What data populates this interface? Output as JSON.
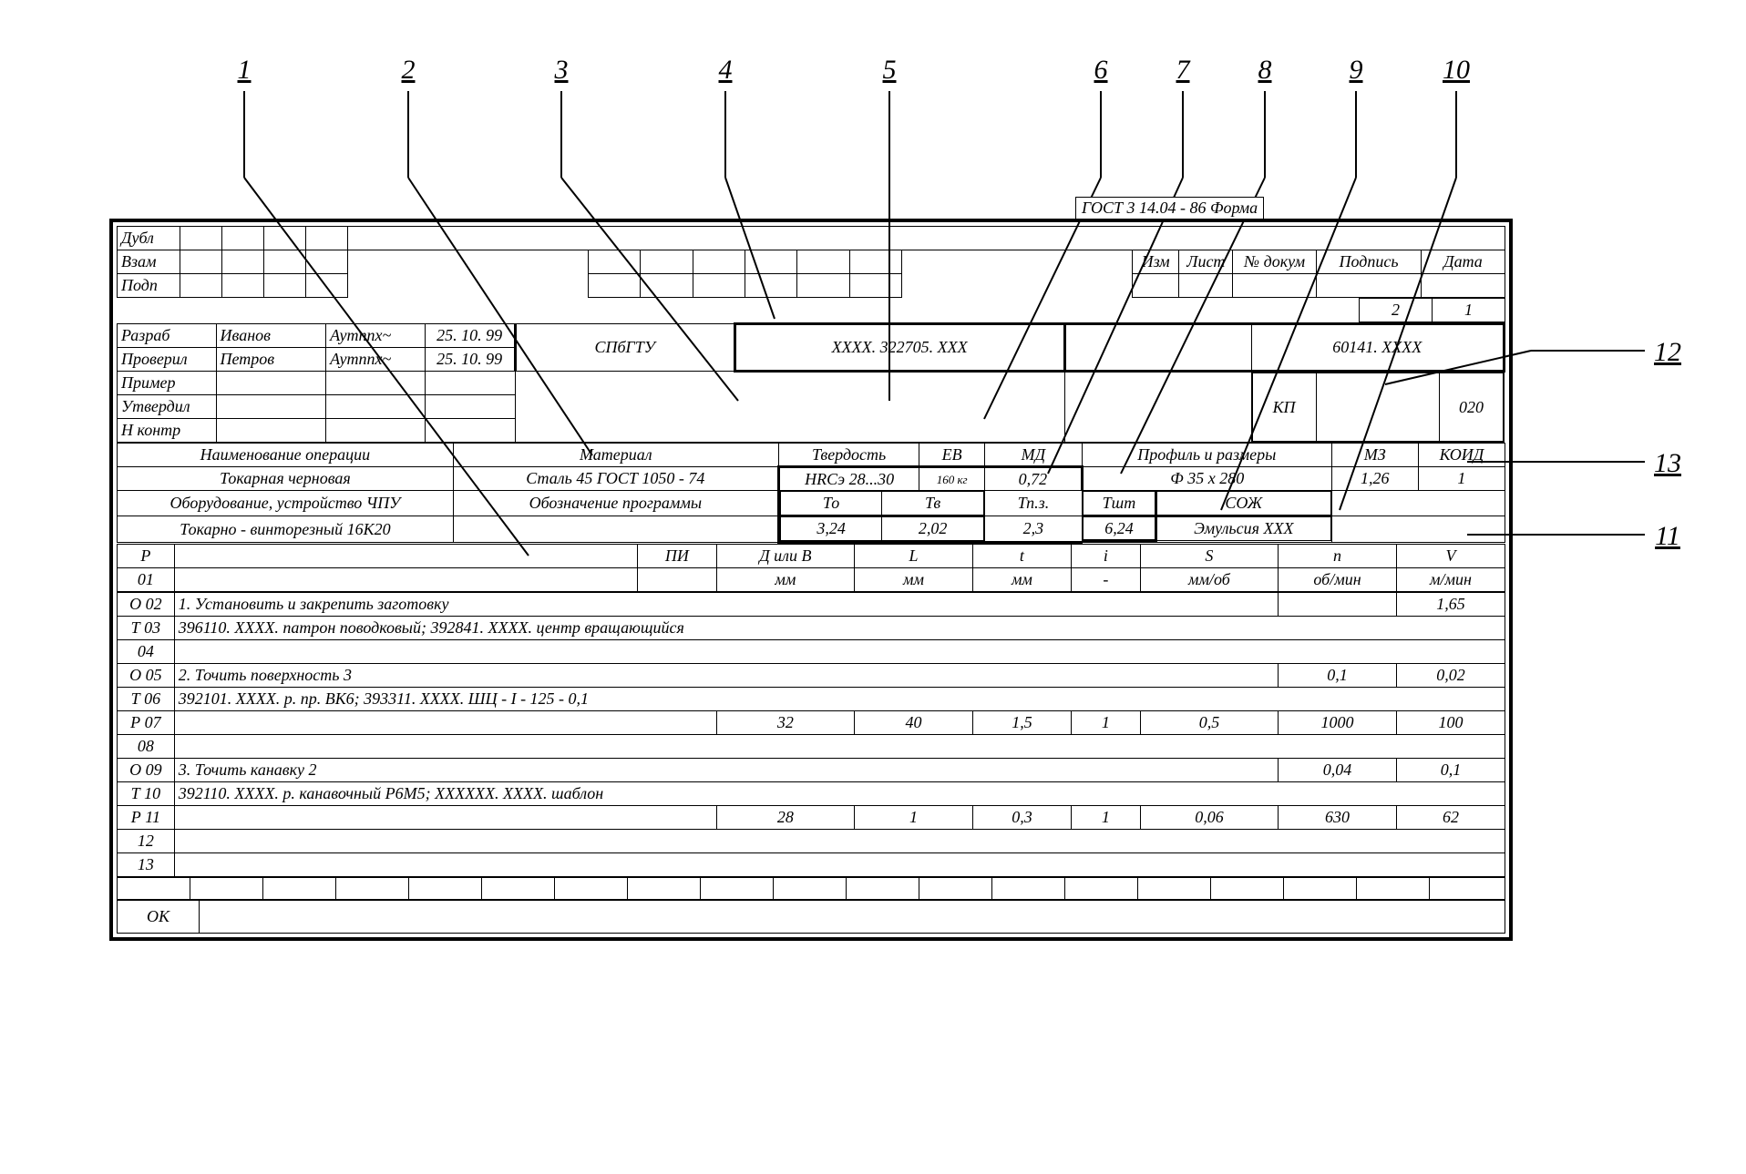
{
  "gost_header": "ГОСТ 3 14.04 - 86   Форма",
  "callouts": [
    "1",
    "2",
    "3",
    "4",
    "5",
    "6",
    "7",
    "8",
    "9",
    "10",
    "12",
    "13",
    "11"
  ],
  "top_labels": {
    "dubl": "Дубл",
    "vzam": "Взам",
    "podp": "Подп",
    "izm": "Изм",
    "list": "Лист",
    "ndok": "№ докум",
    "podpis": "Подпись",
    "data": "Дата",
    "pg_a": "2",
    "pg_b": "1"
  },
  "approval": {
    "rows": [
      "Разраб",
      "Проверил",
      "Пример",
      "Утвердил",
      "Н контр"
    ],
    "name1": "Иванов",
    "name2": "Петров",
    "sig": "Аутппх~",
    "date": "25. 10. 99"
  },
  "org": "СПбГТУ",
  "doc_code": "ХХХХ. 322705. ХХХ",
  "part_code": "60141. ХХХХ",
  "kp": "КП",
  "kp_val": "020",
  "hdr": {
    "op_name": "Наименование операции",
    "material": "Материал",
    "hardness": "Твердость",
    "ev": "ЕВ",
    "md": "МД",
    "profile": "Профиль и размеры",
    "m3": "МЗ",
    "koid": "КОИД",
    "op_val": "Токарная черновая",
    "mat_val": "Сталь 45 ГОСТ 1050 - 74",
    "hard_val": "HRCэ 28...30",
    "ev_val": "160 кг",
    "md_val": "0,72",
    "profile_val": "Ф 35 x 280",
    "m3_val": "1,26",
    "koid_val": "1",
    "equip": "Оборудование, устройство ЧПУ",
    "prog": "Обозначение программы",
    "to": "То",
    "tv": "Тв",
    "tpz": "Тп.з.",
    "tsht": "Тшт",
    "soz": "СОЖ",
    "equip_val": "Токарно - винторезный 16К20",
    "to_v": "3,24",
    "tv_v": "2,02",
    "tpz_v": "2,3",
    "tsht_v": "6,24",
    "soz_val": "Эмульсия ХХХ"
  },
  "cols": {
    "r": "Р",
    "pi": "ПИ",
    "d": "Д или В",
    "l": "L",
    "t": "t",
    "i": "i",
    "s": "S",
    "n": "n",
    "v": "V",
    "u_d": "мм",
    "u_l": "мм",
    "u_t": "мм",
    "u_i": "-",
    "u_s": "мм/об",
    "u_n": "об/мин",
    "u_v": "м/мин",
    "row0": "01"
  },
  "ops": [
    {
      "no": "О 02",
      "txt": "1. Установить и закрепить заготовку",
      "n": "",
      "v": "1,65"
    },
    {
      "no": "Т 03",
      "txt": "396110. ХХХХ. патрон поводковый; 392841. ХХХХ. центр вращающийся"
    },
    {
      "no": "04",
      "txt": ""
    },
    {
      "no": "О 05",
      "txt": "2. Точить поверхность 3",
      "n": "0,1",
      "v": "0,02"
    },
    {
      "no": "Т 06",
      "txt": "392101. ХХХХ. р. пр. ВК6; 393311. ХХХХ. ШЦ - I - 125 - 0,1"
    },
    {
      "no": "Р 07",
      "d": "32",
      "l": "40",
      "t": "1,5",
      "i": "1",
      "s": "0,5",
      "n": "1000",
      "v": "100"
    },
    {
      "no": "08",
      "txt": ""
    },
    {
      "no": "О 09",
      "txt": "3. Точить канавку 2",
      "n": "0,04",
      "v": "0,1"
    },
    {
      "no": "Т 10",
      "txt": "392110. ХХХХ. р. канавочный Р6М5; ХХХХХХ. ХХХХ. шаблон"
    },
    {
      "no": "Р 11",
      "d": "28",
      "l": "1",
      "t": "0,3",
      "i": "1",
      "s": "0,06",
      "n": "630",
      "v": "62"
    },
    {
      "no": "12",
      "txt": ""
    },
    {
      "no": "13",
      "txt": ""
    }
  ],
  "ok": "ОК"
}
